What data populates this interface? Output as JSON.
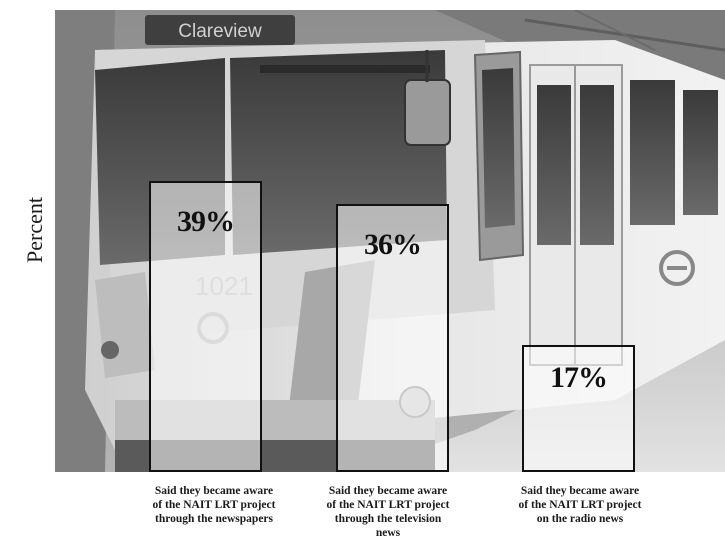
{
  "chart_data": {
    "type": "bar",
    "ylabel": "Percent",
    "categories": [
      "Said they became aware of the NAIT LRT project through the newspapers",
      "Said they became aware of the NAIT LRT project through the television news",
      "Said they became aware of the NAIT LRT project on the radio news"
    ],
    "values": [
      39,
      36,
      17
    ],
    "value_labels": [
      "39%",
      "36%",
      "17%"
    ],
    "ylim": [
      0,
      62
    ],
    "grid": false,
    "legend": "none",
    "bar_fill": "#ffffff",
    "bar_border": "#111111"
  },
  "background": {
    "kind": "photo of a light rail train at a station",
    "destination_sign": "Clareview",
    "car_number": "1021",
    "colors": {
      "sky": "#bdbdbd",
      "train_body": "#e3e3e3",
      "shadow": "#5a5a5a"
    }
  }
}
